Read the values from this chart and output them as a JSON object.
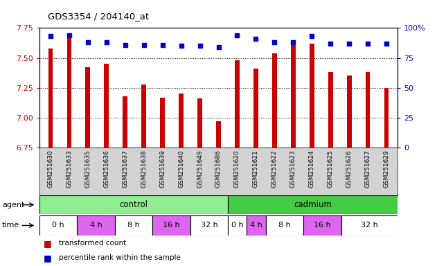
{
  "title": "GDS3354 / 204140_at",
  "samples": [
    "GSM251630",
    "GSM251633",
    "GSM251635",
    "GSM251636",
    "GSM251637",
    "GSM251638",
    "GSM251639",
    "GSM251640",
    "GSM251649",
    "GSM251686",
    "GSM251620",
    "GSM251621",
    "GSM251622",
    "GSM251623",
    "GSM251624",
    "GSM251625",
    "GSM251626",
    "GSM251627",
    "GSM251629"
  ],
  "transformed_counts": [
    7.58,
    7.68,
    7.42,
    7.45,
    7.18,
    7.28,
    7.17,
    7.2,
    7.16,
    6.97,
    7.48,
    7.41,
    7.54,
    7.62,
    7.62,
    7.38,
    7.35,
    7.38,
    7.25
  ],
  "percentile_ranks": [
    93,
    94,
    88,
    88,
    86,
    86,
    86,
    85,
    85,
    84,
    94,
    91,
    88,
    88,
    93,
    87,
    87,
    87,
    87
  ],
  "ylim_left": [
    6.75,
    7.75
  ],
  "ylim_right": [
    0,
    100
  ],
  "yticks_left": [
    6.75,
    7.0,
    7.25,
    7.5,
    7.75
  ],
  "yticks_right": [
    0,
    25,
    50,
    75,
    100
  ],
  "ytick_labels_right": [
    "0",
    "25",
    "50",
    "75",
    "100%"
  ],
  "bar_color": "#cc0000",
  "dot_color": "#0000cc",
  "bar_width": 0.25,
  "agent_control_label": "control",
  "agent_cadmium_label": "cadmium",
  "agent_label": "agent",
  "time_label": "time",
  "time_groups_control": [
    "0 h",
    "4 h",
    "8 h",
    "16 h",
    "32 h"
  ],
  "time_groups_cadmium": [
    "0 h",
    "4 h",
    "8 h",
    "16 h",
    "32 h"
  ],
  "control_count": 10,
  "cadmium_count": 9,
  "control_time_counts": [
    2,
    2,
    2,
    2,
    2
  ],
  "cadmium_time_counts": [
    1,
    1,
    2,
    2,
    3
  ],
  "legend_red": "transformed count",
  "legend_blue": "percentile rank within the sample",
  "control_color": "#90ee90",
  "cadmium_color": "#44cc44",
  "time_white_color": "#ffffff",
  "time_pink_color": "#dd66ee",
  "sample_bg_color": "#d3d3d3",
  "tick_label_color_left": "#cc0000",
  "tick_label_color_right": "#0000cc",
  "grid_linestyle": ":",
  "grid_linewidth": 0.7,
  "grid_yticks": [
    7.0,
    7.25,
    7.5
  ]
}
